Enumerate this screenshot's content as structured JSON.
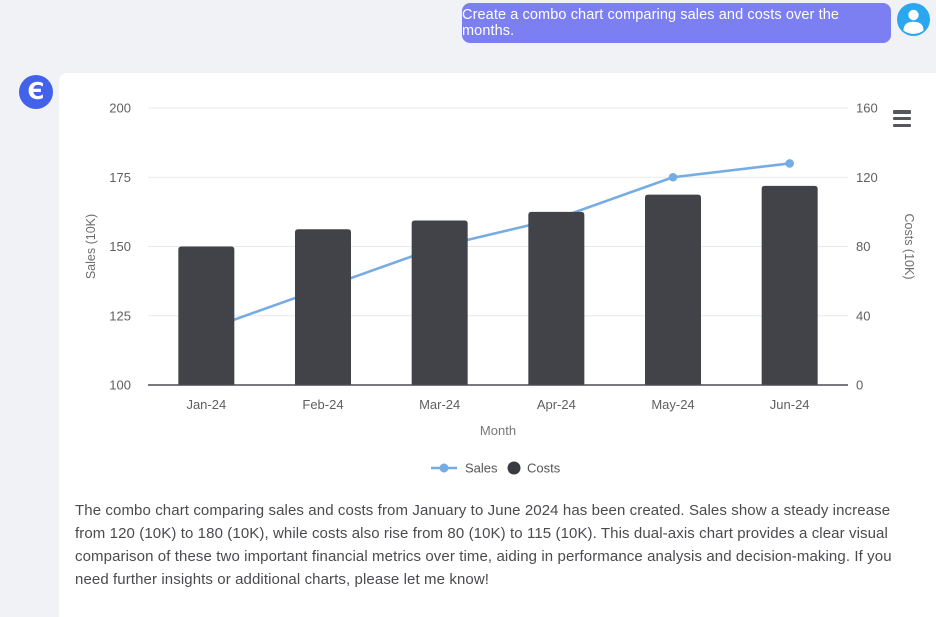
{
  "chat": {
    "user_message": "Create a combo chart comparing sales and costs over the months.",
    "bubble_color": "#7b7ff2",
    "avatar_color": "#2aa7ee"
  },
  "logo": {
    "glyph": "Є",
    "color": "#4262e9"
  },
  "toolbox": {
    "icon": "hamburger-menu"
  },
  "chart_data": {
    "type": "combo",
    "categories": [
      "Jan-24",
      "Feb-24",
      "Mar-24",
      "Apr-24",
      "May-24",
      "Jun-24"
    ],
    "series": [
      {
        "name": "Sales",
        "type": "line",
        "axis": "left",
        "values": [
          120,
          135,
          150,
          160,
          175,
          180
        ],
        "color": "#76ace4"
      },
      {
        "name": "Costs",
        "type": "bar",
        "axis": "right",
        "values": [
          80,
          90,
          95,
          100,
          110,
          115
        ],
        "color": "#414349"
      }
    ],
    "xlabel": "Month",
    "left_axis": {
      "label": "Sales (10K)",
      "min": 100,
      "max": 200,
      "ticks": [
        100,
        125,
        150,
        175,
        200
      ]
    },
    "right_axis": {
      "label": "Costs (10K)",
      "min": 0,
      "max": 160,
      "ticks": [
        0,
        40,
        80,
        120,
        160
      ]
    },
    "legend": [
      "Sales",
      "Costs"
    ],
    "legend_position": "bottom",
    "grid": true
  },
  "assistant_message": "The combo chart comparing sales and costs from January to June 2024 has been created. Sales show a steady increase from 120 (10K) to 180 (10K), while costs also rise from 80 (10K) to 115 (10K). This dual-axis chart provides a clear visual comparison of these two important financial metrics over time, aiding in performance analysis and decision-making. If you need further insights or additional charts, please let me know!"
}
